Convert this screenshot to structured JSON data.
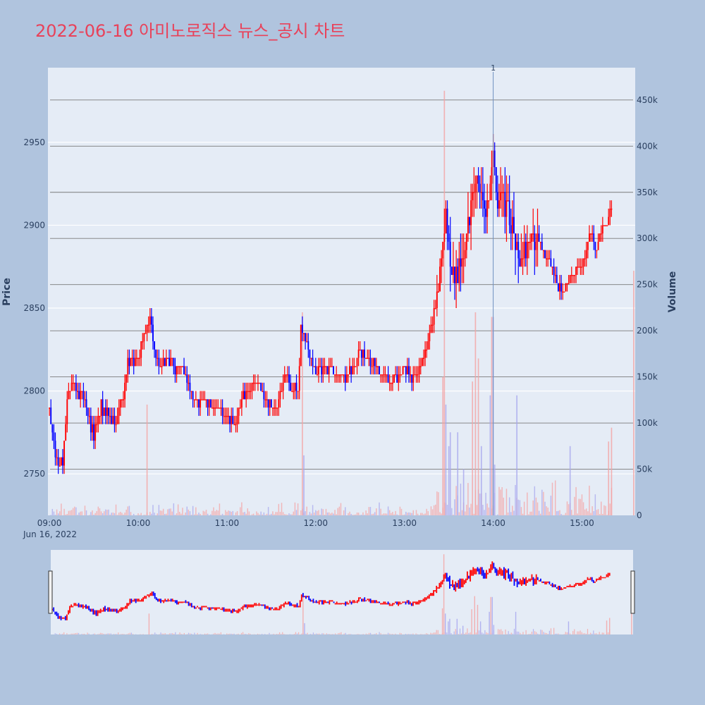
{
  "title": "2022-06-16 아미노로직스 뉴스_공시 차트",
  "colors": {
    "up": "#ff0000",
    "down": "#0000ff",
    "up_volume": "#f4a4a4",
    "down_volume": "#a8a8ee"
  },
  "chart_data": {
    "type": "candlestick",
    "ylabel": "Price",
    "y2label": "Volume",
    "date_label": "Jun 16, 2022",
    "price_range": [
      2725,
      2995
    ],
    "volume_range": [
      0,
      485000
    ],
    "price_ticks": [
      2750,
      2800,
      2850,
      2900,
      2950
    ],
    "volume_ticks": [
      {
        "v": 0,
        "label": "0"
      },
      {
        "v": 50000,
        "label": "50k"
      },
      {
        "v": 100000,
        "label": "100k"
      },
      {
        "v": 150000,
        "label": "150k"
      },
      {
        "v": 200000,
        "label": "200k"
      },
      {
        "v": 250000,
        "label": "250k"
      },
      {
        "v": 300000,
        "label": "300k"
      },
      {
        "v": 350000,
        "label": "350k"
      },
      {
        "v": 400000,
        "label": "400k"
      },
      {
        "v": 450000,
        "label": "450k"
      }
    ],
    "time_ticks": [
      {
        "t": 0,
        "label": "09:00"
      },
      {
        "t": 60,
        "label": "10:00"
      },
      {
        "t": 120,
        "label": "11:00"
      },
      {
        "t": 180,
        "label": "12:00"
      },
      {
        "t": 240,
        "label": "13:00"
      },
      {
        "t": 300,
        "label": "14:00"
      },
      {
        "t": 360,
        "label": "15:00"
      }
    ],
    "time_range_minutes": [
      -1,
      396
    ],
    "session_end_minute": 380,
    "annotation": {
      "t": 300,
      "label": "1"
    },
    "close_anchors": [
      [
        0,
        2790
      ],
      [
        3,
        2770
      ],
      [
        6,
        2755
      ],
      [
        9,
        2760
      ],
      [
        12,
        2795
      ],
      [
        15,
        2805
      ],
      [
        20,
        2800
      ],
      [
        24,
        2795
      ],
      [
        27,
        2780
      ],
      [
        30,
        2775
      ],
      [
        35,
        2790
      ],
      [
        40,
        2785
      ],
      [
        45,
        2780
      ],
      [
        50,
        2800
      ],
      [
        53,
        2815
      ],
      [
        57,
        2820
      ],
      [
        61,
        2820
      ],
      [
        64,
        2835
      ],
      [
        68,
        2845
      ],
      [
        71,
        2825
      ],
      [
        75,
        2815
      ],
      [
        80,
        2820
      ],
      [
        85,
        2815
      ],
      [
        90,
        2815
      ],
      [
        95,
        2800
      ],
      [
        100,
        2790
      ],
      [
        105,
        2795
      ],
      [
        110,
        2790
      ],
      [
        115,
        2790
      ],
      [
        120,
        2785
      ],
      [
        125,
        2780
      ],
      [
        130,
        2795
      ],
      [
        135,
        2800
      ],
      [
        140,
        2805
      ],
      [
        145,
        2795
      ],
      [
        150,
        2790
      ],
      [
        155,
        2795
      ],
      [
        160,
        2810
      ],
      [
        163,
        2800
      ],
      [
        168,
        2800
      ],
      [
        170,
        2840
      ],
      [
        173,
        2830
      ],
      [
        177,
        2820
      ],
      [
        181,
        2810
      ],
      [
        185,
        2815
      ],
      [
        190,
        2815
      ],
      [
        195,
        2810
      ],
      [
        200,
        2805
      ],
      [
        205,
        2815
      ],
      [
        210,
        2825
      ],
      [
        215,
        2820
      ],
      [
        220,
        2815
      ],
      [
        225,
        2810
      ],
      [
        230,
        2805
      ],
      [
        235,
        2808
      ],
      [
        240,
        2812
      ],
      [
        245,
        2808
      ],
      [
        250,
        2812
      ],
      [
        255,
        2825
      ],
      [
        258,
        2840
      ],
      [
        262,
        2855
      ],
      [
        265,
        2885
      ],
      [
        268,
        2905
      ],
      [
        272,
        2870
      ],
      [
        275,
        2870
      ],
      [
        278,
        2875
      ],
      [
        282,
        2895
      ],
      [
        285,
        2910
      ],
      [
        288,
        2930
      ],
      [
        292,
        2920
      ],
      [
        295,
        2905
      ],
      [
        298,
        2925
      ],
      [
        300,
        2945
      ],
      [
        303,
        2910
      ],
      [
        305,
        2925
      ],
      [
        308,
        2910
      ],
      [
        311,
        2905
      ],
      [
        314,
        2895
      ],
      [
        318,
        2880
      ],
      [
        322,
        2885
      ],
      [
        326,
        2895
      ],
      [
        330,
        2890
      ],
      [
        334,
        2885
      ],
      [
        338,
        2880
      ],
      [
        342,
        2870
      ],
      [
        346,
        2860
      ],
      [
        350,
        2865
      ],
      [
        354,
        2870
      ],
      [
        358,
        2875
      ],
      [
        362,
        2880
      ],
      [
        366,
        2895
      ],
      [
        370,
        2885
      ],
      [
        374,
        2900
      ],
      [
        378,
        2905
      ],
      [
        380,
        2910
      ]
    ],
    "volume_spikes": [
      {
        "t": 66,
        "v": 120000,
        "up": true
      },
      {
        "t": 171,
        "v": 220000,
        "up": true
      },
      {
        "t": 172,
        "v": 65000,
        "up": false
      },
      {
        "t": 266,
        "v": 150000,
        "up": true
      },
      {
        "t": 267,
        "v": 460000,
        "up": true
      },
      {
        "t": 268,
        "v": 120000,
        "up": false
      },
      {
        "t": 270,
        "v": 75000,
        "up": false
      },
      {
        "t": 271,
        "v": 90000,
        "up": false
      },
      {
        "t": 276,
        "v": 90000,
        "up": false
      },
      {
        "t": 280,
        "v": 50000,
        "up": false
      },
      {
        "t": 286,
        "v": 145000,
        "up": true
      },
      {
        "t": 288,
        "v": 220000,
        "up": true
      },
      {
        "t": 290,
        "v": 170000,
        "up": true
      },
      {
        "t": 292,
        "v": 75000,
        "up": false
      },
      {
        "t": 298,
        "v": 130000,
        "up": false
      },
      {
        "t": 299,
        "v": 215000,
        "up": true
      },
      {
        "t": 300,
        "v": 215000,
        "up": false
      },
      {
        "t": 301,
        "v": 55000,
        "up": false
      },
      {
        "t": 316,
        "v": 130000,
        "up": false
      },
      {
        "t": 352,
        "v": 75000,
        "up": false
      },
      {
        "t": 378,
        "v": 80000,
        "up": true
      },
      {
        "t": 380,
        "v": 95000,
        "up": true
      },
      {
        "t": 395,
        "v": 265000,
        "up": true
      }
    ]
  }
}
